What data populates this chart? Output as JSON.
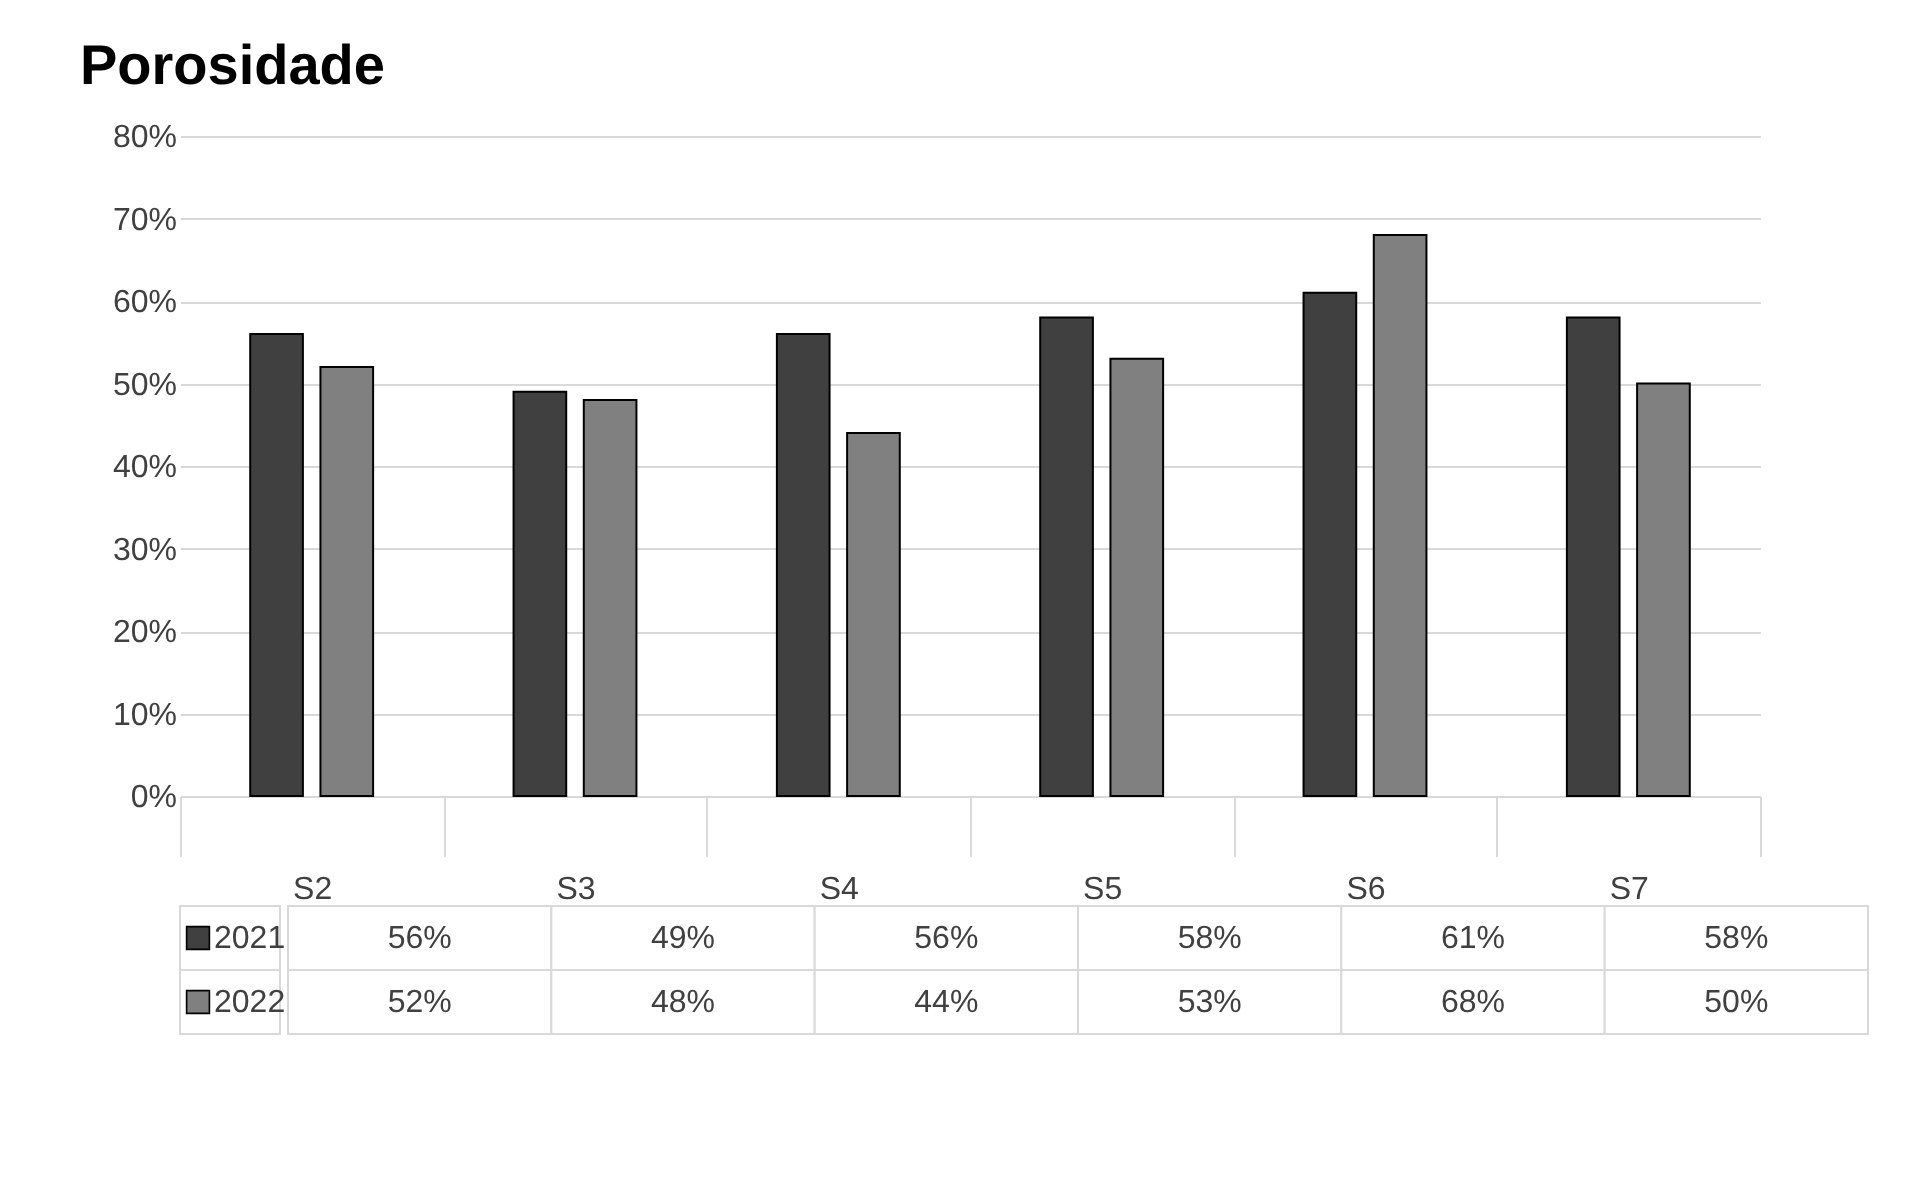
{
  "chart_data": {
    "type": "bar",
    "title": "Porosidade",
    "categories": [
      "S2",
      "S3",
      "S4",
      "S5",
      "S6",
      "S7"
    ],
    "series": [
      {
        "name": "2021",
        "color": "#404040",
        "values": [
          56,
          49,
          56,
          58,
          61,
          58
        ],
        "value_labels": [
          "56%",
          "49%",
          "56%",
          "58%",
          "61%",
          "58%"
        ]
      },
      {
        "name": "2022",
        "color": "#808080",
        "values": [
          52,
          48,
          44,
          53,
          68,
          50
        ],
        "value_labels": [
          "52%",
          "48%",
          "44%",
          "53%",
          "68%",
          "50%"
        ]
      }
    ],
    "ylim": [
      0,
      80
    ],
    "yticks": [
      {
        "value": 0,
        "label": "0%"
      },
      {
        "value": 10,
        "label": "10%"
      },
      {
        "value": 20,
        "label": "20%"
      },
      {
        "value": 30,
        "label": "30%"
      },
      {
        "value": 40,
        "label": "40%"
      },
      {
        "value": 50,
        "label": "50%"
      },
      {
        "value": 60,
        "label": "60%"
      },
      {
        "value": 70,
        "label": "70%"
      },
      {
        "value": 80,
        "label": "80%"
      }
    ],
    "grid": "y",
    "legend": "bottom"
  }
}
